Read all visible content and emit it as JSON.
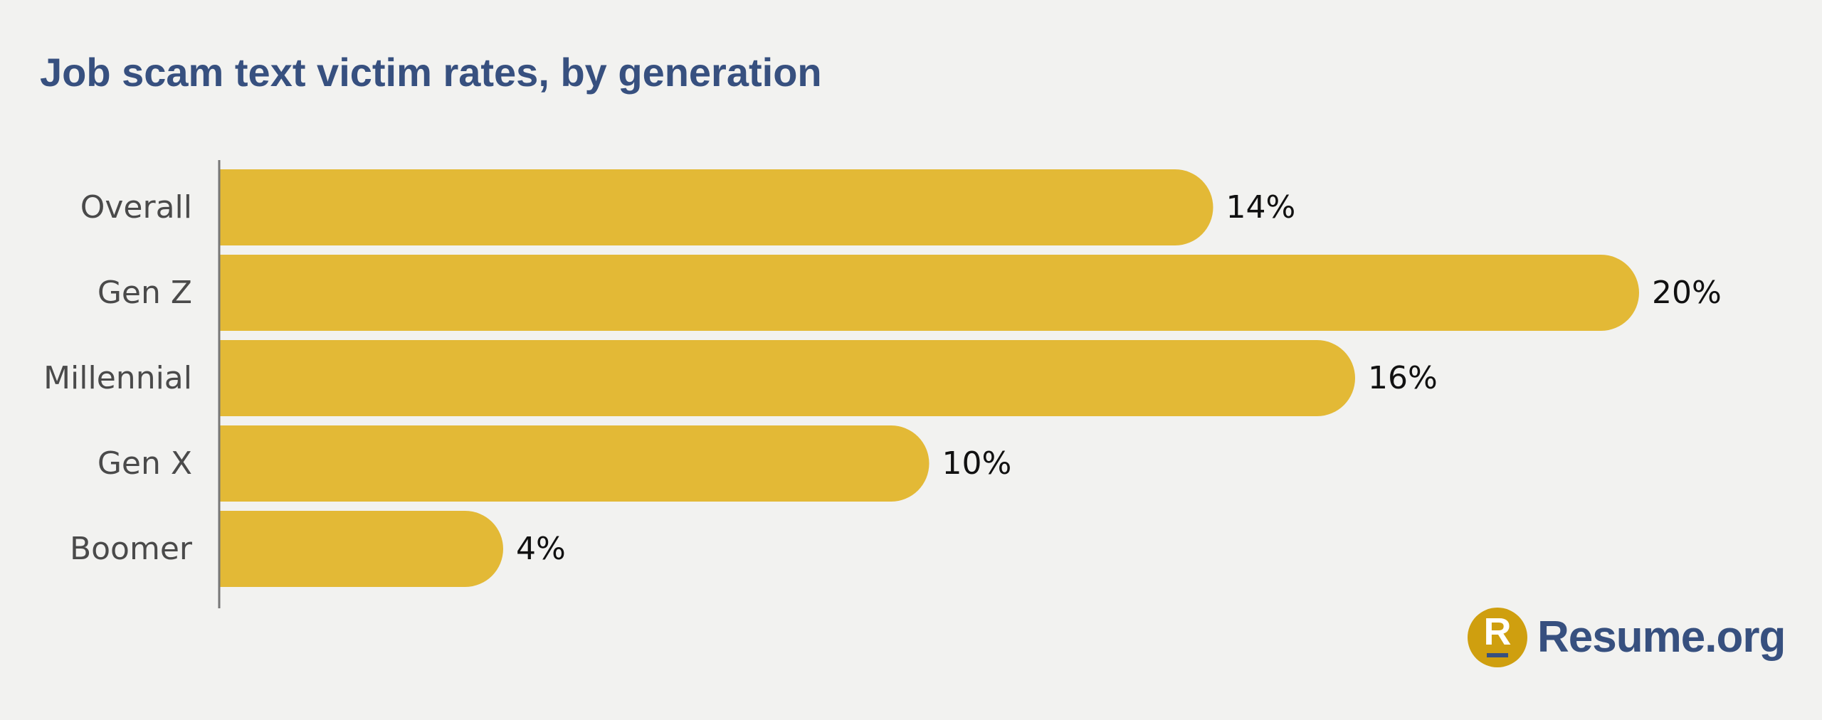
{
  "colors": {
    "background": "#f2f2f0",
    "bar": "#e3b936",
    "title": "#37507f",
    "axis": "#777777",
    "logo_mark": "#cf9f0f",
    "logo_text": "#37507f"
  },
  "chart_data": {
    "type": "bar",
    "orientation": "horizontal",
    "title": "Job scam text victim rates, by generation",
    "categories": [
      "Overall",
      "Gen Z",
      "Millennial",
      "Gen X",
      "Boomer"
    ],
    "values": [
      14,
      20,
      16,
      10,
      4
    ],
    "value_labels": [
      "14%",
      "20%",
      "16%",
      "10%",
      "4%"
    ],
    "unit": "%",
    "xlim": [
      0,
      20
    ],
    "grid": false,
    "legend": "none"
  },
  "logo": {
    "letter": "R",
    "text": "Resume.org",
    "icon": "resume-org-logo-icon"
  }
}
